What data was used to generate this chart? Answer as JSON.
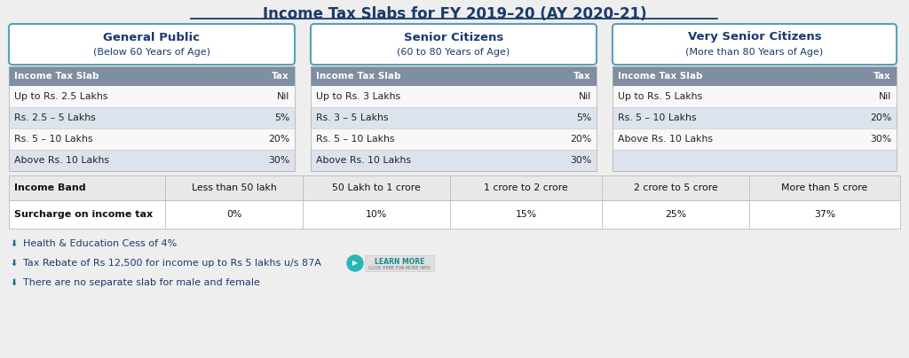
{
  "title": "Income Tax Slabs for FY 2019–20 (AY 2020-21)",
  "background_color": "#eeeeee",
  "header_bg": "#7f8ea0",
  "row_alt_color": "#dce3ec",
  "row_normal_color": "#f8f8f8",
  "section_box_color": "#5a9fbd",
  "categories": {
    "general": {
      "title": "General Public",
      "subtitle": "(Below 60 Years of Age)",
      "slabs": [
        "Up to Rs. 2.5 Lakhs",
        "Rs. 2.5 – 5 Lakhs",
        "Rs. 5 – 10 Lakhs",
        "Above Rs. 10 Lakhs"
      ],
      "taxes": [
        "Nil",
        "5%",
        "20%",
        "30%"
      ]
    },
    "senior": {
      "title": "Senior Citizens",
      "subtitle": "(60 to 80 Years of Age)",
      "slabs": [
        "Up to Rs. 3 Lakhs",
        "Rs. 3 – 5 Lakhs",
        "Rs. 5 – 10 Lakhs",
        "Above Rs. 10 Lakhs"
      ],
      "taxes": [
        "Nil",
        "5%",
        "20%",
        "30%"
      ]
    },
    "very_senior": {
      "title": "Very Senior Citizens",
      "subtitle": "(More than 80 Years of Age)",
      "slabs": [
        "Up to Rs. 5 Lakhs",
        "Rs. 5 – 10 Lakhs",
        "Above Rs. 10 Lakhs",
        ""
      ],
      "taxes": [
        "Nil",
        "20%",
        "30%",
        ""
      ]
    }
  },
  "surcharge": {
    "bands": [
      "Income Band",
      "Less than 50 lakh",
      "50 Lakh to 1 crore",
      "1 crore to 2 crore",
      "2 crore to 5 crore",
      "More than 5 crore"
    ],
    "values": [
      "Surcharge on income tax",
      "0%",
      "10%",
      "15%",
      "25%",
      "37%"
    ]
  },
  "footnotes": [
    "Health & Education Cess of 4%",
    "Tax Rebate of Rs 12,500 for income up to Rs 5 lakhs u/s 87A",
    "There are no separate slab for male and female"
  ],
  "title_color": "#1a3a6e",
  "footnote_color": "#1a3a6e",
  "learn_more_bg": "#29b6b8",
  "learn_more_text": "LEARN MORE",
  "learn_more_sub": "CLICK HERE FOR MORE INFO"
}
